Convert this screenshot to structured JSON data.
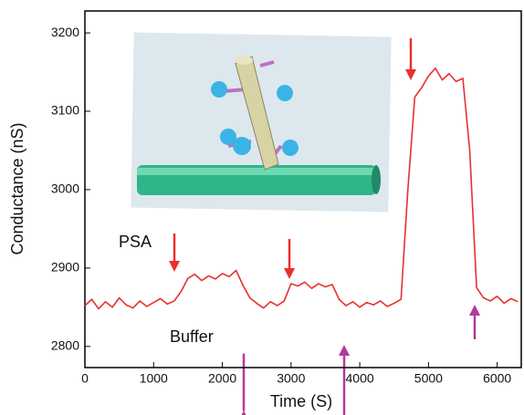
{
  "chart_data": {
    "type": "line",
    "xlabel": "Time (S)",
    "ylabel": "Conductance (nS)",
    "x": [
      0,
      100,
      200,
      300,
      400,
      500,
      600,
      700,
      800,
      900,
      1000,
      1100,
      1200,
      1300,
      1400,
      1500,
      1600,
      1700,
      1800,
      1900,
      2000,
      2100,
      2200,
      2300,
      2400,
      2500,
      2600,
      2700,
      2800,
      2900,
      3000,
      3100,
      3200,
      3300,
      3400,
      3500,
      3600,
      3700,
      3800,
      3900,
      4000,
      4100,
      4200,
      4300,
      4400,
      4500,
      4600,
      4700,
      4800,
      4900,
      5000,
      5100,
      5200,
      5300,
      5400,
      5500,
      5600,
      5700,
      5800,
      5900,
      6000,
      6100,
      6200,
      6300
    ],
    "series": [
      {
        "color": "#e8302f",
        "values": [
          2852,
          2860,
          2848,
          2857,
          2850,
          2862,
          2853,
          2849,
          2858,
          2851,
          2856,
          2861,
          2854,
          2858,
          2870,
          2887,
          2892,
          2884,
          2890,
          2886,
          2893,
          2889,
          2897,
          2878,
          2862,
          2855,
          2849,
          2857,
          2852,
          2858,
          2880,
          2877,
          2882,
          2874,
          2880,
          2876,
          2879,
          2860,
          2852,
          2857,
          2850,
          2856,
          2853,
          2858,
          2851,
          2855,
          2860,
          3000,
          3118,
          3130,
          3145,
          3155,
          3140,
          3148,
          3138,
          3142,
          3050,
          2875,
          2862,
          2858,
          2864,
          2855,
          2861,
          2857
        ]
      }
    ],
    "xlim": [
      0,
      6350
    ],
    "ylim": [
      2773,
      3228
    ],
    "xticks": [
      0,
      1000,
      2000,
      3000,
      4000,
      5000,
      6000
    ],
    "yticks": [
      2800,
      2900,
      3000,
      3100,
      3200
    ],
    "annotations": [
      {
        "text": "PSA",
        "color": "#e8302f"
      },
      {
        "text": "Buffer",
        "color": "#b23a9a"
      }
    ]
  }
}
